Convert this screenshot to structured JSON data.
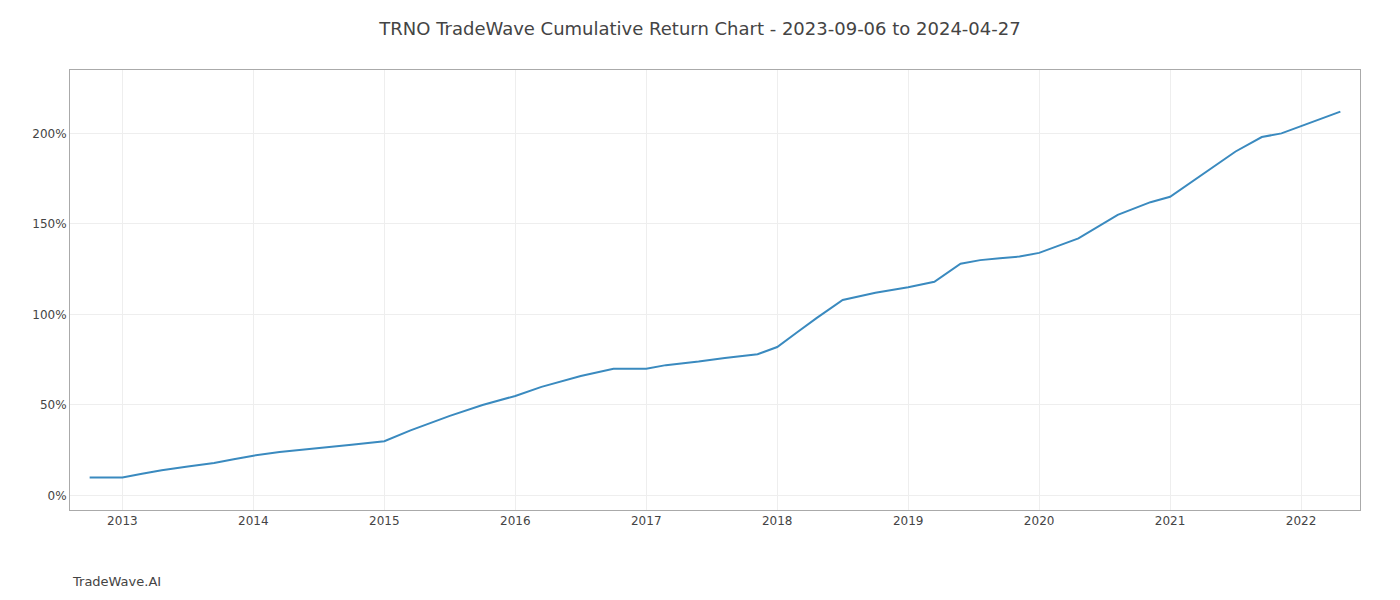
{
  "chart_data": {
    "type": "line",
    "title": "TRNO TradeWave Cumulative Return Chart - 2023-09-06 to 2024-04-27",
    "annotations": [
      "TradeWave.AI"
    ],
    "color": "#3a8abf",
    "grid": true,
    "x": [
      2012.75,
      2013.0,
      2013.15,
      2013.3,
      2013.5,
      2013.7,
      2013.85,
      2014.0,
      2014.2,
      2014.5,
      2014.75,
      2015.0,
      2015.2,
      2015.5,
      2015.75,
      2016.0,
      2016.2,
      2016.5,
      2016.75,
      2017.0,
      2017.15,
      2017.4,
      2017.6,
      2017.85,
      2018.0,
      2018.15,
      2018.3,
      2018.5,
      2018.75,
      2019.0,
      2019.2,
      2019.4,
      2019.55,
      2019.7,
      2019.85,
      2020.0,
      2020.3,
      2020.6,
      2020.85,
      2021.0,
      2021.2,
      2021.5,
      2021.7,
      2021.85,
      2022.0,
      2022.15,
      2022.3
    ],
    "values": [
      10,
      10,
      12,
      14,
      16,
      18,
      20,
      22,
      24,
      26,
      28,
      30,
      36,
      44,
      50,
      55,
      60,
      66,
      70,
      70,
      72,
      74,
      76,
      78,
      82,
      90,
      98,
      108,
      112,
      115,
      118,
      128,
      130,
      131,
      132,
      134,
      142,
      155,
      162,
      165,
      175,
      190,
      198,
      200,
      204,
      208,
      212
    ],
    "xlim": [
      2012.6,
      2022.45
    ],
    "xticks": [
      2013,
      2014,
      2015,
      2016,
      2017,
      2018,
      2019,
      2020,
      2021,
      2022
    ],
    "ylim": [
      -8,
      235
    ],
    "yticks": [
      {
        "value": 0,
        "label": "0%"
      },
      {
        "value": 50,
        "label": "50%"
      },
      {
        "value": 100,
        "label": "100%"
      },
      {
        "value": 150,
        "label": "150%"
      },
      {
        "value": 200,
        "label": "200%"
      }
    ]
  }
}
